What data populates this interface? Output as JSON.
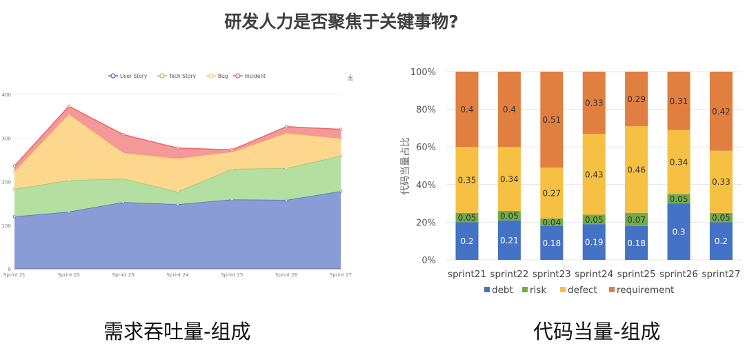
{
  "title": "研发人力是否聚焦于关键事物?",
  "captions": {
    "left": "需求吞吐量-组成",
    "right": "代码当量-组成"
  },
  "chart_data": [
    {
      "type": "area",
      "stacked": true,
      "categories": [
        "Sprint 21",
        "Sprint 22",
        "Sprint 23",
        "Sprint 24",
        "Sprint 25",
        "Sprint 26",
        "Sprint 27"
      ],
      "ylim": [
        0,
        400
      ],
      "yticks": [
        "0",
        "100",
        "200",
        "300",
        "400"
      ],
      "legend_position": "top",
      "download_icon": "download-icon",
      "series": [
        {
          "name": "User Story",
          "color": "#5470c6",
          "fill": "#8497d3",
          "values": [
            120,
            131,
            153,
            148,
            159,
            158,
            178
          ]
        },
        {
          "name": "Tech Story",
          "color": "#91cc75",
          "fill": "#b0dd9b",
          "values": [
            63,
            72,
            54,
            29,
            70,
            73,
            81
          ]
        },
        {
          "name": "Bug",
          "color": "#fac858",
          "fill": "#fcd587",
          "values": [
            41,
            152,
            59,
            76,
            39,
            80,
            40
          ]
        },
        {
          "name": "Incident",
          "color": "#ee6666",
          "fill": "#f29494",
          "values": [
            12,
            18,
            42,
            24,
            5,
            15,
            21
          ]
        }
      ]
    },
    {
      "type": "bar",
      "stacked": true,
      "percent": true,
      "ylabel": "代码当量占比",
      "categories": [
        "sprint21",
        "sprint22",
        "sprint23",
        "sprint24",
        "sprint25",
        "sprint26",
        "sprint27"
      ],
      "yticks": [
        "0%",
        "20%",
        "40%",
        "60%",
        "80%",
        "100%"
      ],
      "legend_position": "bottom",
      "series": [
        {
          "name": "debt",
          "color": "#4472c4",
          "labelColor": "#ffffff",
          "values": [
            0.2,
            0.21,
            0.18,
            0.19,
            0.18,
            0.3,
            0.2
          ]
        },
        {
          "name": "risk",
          "color": "#70ad47",
          "labelColor": "#333333",
          "values": [
            0.05,
            0.05,
            0.04,
            0.05,
            0.07,
            0.05,
            0.05
          ]
        },
        {
          "name": "defect",
          "color": "#f6c143",
          "labelColor": "#333333",
          "values": [
            0.35,
            0.34,
            0.27,
            0.43,
            0.46,
            0.34,
            0.33
          ]
        },
        {
          "name": "requirement",
          "color": "#e07f3f",
          "labelColor": "#333333",
          "values": [
            0.4,
            0.4,
            0.51,
            0.33,
            0.29,
            0.31,
            0.42
          ]
        }
      ]
    }
  ]
}
